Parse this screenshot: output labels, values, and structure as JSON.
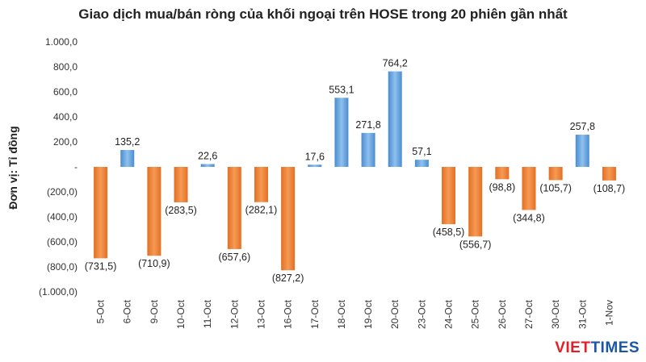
{
  "chart_data": {
    "type": "bar",
    "title": "Giao dịch mua/bán ròng của khối ngoại trên HOSE trong 20 phiên gần nhất",
    "ylabel": "Đơn vị: Tỉ đồng",
    "xlabel": "",
    "ylim": [
      -1000,
      1000
    ],
    "yticks": [
      "1.000,0",
      "800,0",
      "600,0",
      "400,0",
      "200,0",
      "-",
      "(200,0)",
      "(400,0)",
      "(600,0)",
      "(800,0)",
      "(1.000,0)"
    ],
    "categories": [
      "5-Oct",
      "6-Oct",
      "9-Oct",
      "10-Oct",
      "11-Oct",
      "12-Oct",
      "13-Oct",
      "16-Oct",
      "17-Oct",
      "18-Oct",
      "19-Oct",
      "20-Oct",
      "23-Oct",
      "24-Oct",
      "25-Oct",
      "26-Oct",
      "27-Oct",
      "30-Oct",
      "31-Oct",
      "1-Nov"
    ],
    "values": [
      -731.5,
      135.2,
      -710.9,
      -283.5,
      22.6,
      -657.6,
      -282.1,
      -827.2,
      17.6,
      553.1,
      271.8,
      764.2,
      57.1,
      -458.5,
      -556.7,
      -98.8,
      -344.8,
      -105.7,
      257.8,
      -108.7
    ],
    "data_labels": [
      "(731,5)",
      "135,2",
      "(710,9)",
      "(283,5)",
      "22,6",
      "(657,6)",
      "(282,1)",
      "(827,2)",
      "17,6",
      "553,1",
      "271,8",
      "764,2",
      "57,1",
      "(458,5)",
      "(556,7)",
      "(98,8)",
      "(344,8)",
      "(105,7)",
      "257,8",
      "(108,7)"
    ],
    "grid": false,
    "legend": "none",
    "colors": {
      "positive": "#5b9bd5",
      "negative": "#ed7d31"
    }
  },
  "watermark": {
    "part1": "VIET",
    "part2": "TIMES"
  }
}
